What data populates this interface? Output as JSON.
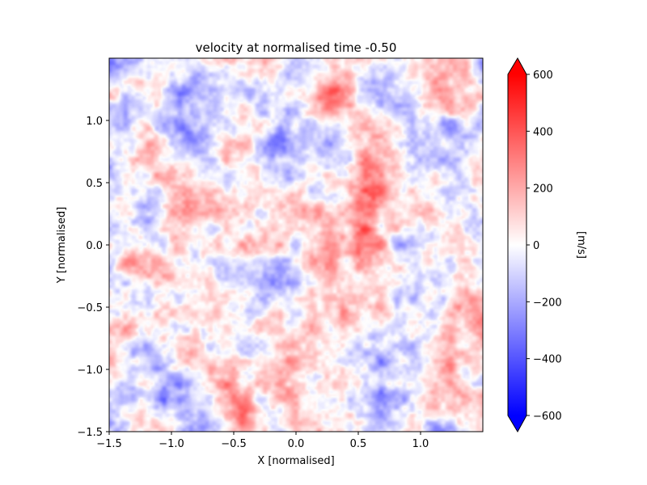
{
  "chart_data": {
    "type": "heatmap",
    "title": "velocity at normalised time -0.50",
    "xlabel": "X [normalised]",
    "ylabel": "Y [normalised]",
    "xlim": [
      -1.5,
      1.5
    ],
    "ylim": [
      -1.5,
      1.5
    ],
    "x_ticks": [
      -1.5,
      -1.0,
      -0.5,
      0.0,
      0.5,
      1.0
    ],
    "x_tick_labels": [
      "−1.5",
      "−1.0",
      "−0.5",
      "0.0",
      "0.5",
      "1.0"
    ],
    "y_ticks": [
      -1.5,
      -1.0,
      -0.5,
      0.0,
      0.5,
      1.0
    ],
    "y_tick_labels": [
      "−1.5",
      "−1.0",
      "−0.5",
      "0.0",
      "0.5",
      "1.0"
    ],
    "colorbar": {
      "label": "[m/s]",
      "vmin": -600,
      "vmax": 600,
      "ticks": [
        -600,
        -400,
        -200,
        0,
        200,
        400,
        600
      ],
      "tick_labels": [
        "−600",
        "−400",
        "−200",
        "0",
        "200",
        "400",
        "600"
      ],
      "extend": "both",
      "colormap": "bwr",
      "color_low": "#0000ff",
      "color_mid": "#ffffff",
      "color_high": "#ff0000"
    },
    "grid": false,
    "field_description": "turbulent velocity field with blobs of roughly ±300 m/s",
    "features": [
      {
        "x": 1.4,
        "y": -0.5,
        "value": 380
      },
      {
        "x": 0.55,
        "y": 0.05,
        "value": 320
      },
      {
        "x": 0.55,
        "y": 0.45,
        "value": 300
      },
      {
        "x": -0.15,
        "y": -1.0,
        "value": 300
      },
      {
        "x": -0.45,
        "y": -1.35,
        "value": 280
      },
      {
        "x": -0.6,
        "y": 0.7,
        "value": 220
      },
      {
        "x": -1.3,
        "y": -0.15,
        "value": 250
      },
      {
        "x": -1.2,
        "y": 0.75,
        "value": 200
      },
      {
        "x": 1.15,
        "y": 1.35,
        "value": 200
      },
      {
        "x": 0.35,
        "y": 1.2,
        "value": 200
      },
      {
        "x": 0.15,
        "y": 0.2,
        "value": 180
      },
      {
        "x": 1.3,
        "y": -1.35,
        "value": 160
      },
      {
        "x": -0.85,
        "y": 0.9,
        "value": -380
      },
      {
        "x": 0.85,
        "y": 1.2,
        "value": -320
      },
      {
        "x": -0.15,
        "y": 0.75,
        "value": -300
      },
      {
        "x": -1.35,
        "y": 1.1,
        "value": -280
      },
      {
        "x": -1.3,
        "y": -0.45,
        "value": -260
      },
      {
        "x": -0.9,
        "y": -1.3,
        "value": -260
      },
      {
        "x": 0.85,
        "y": -1.25,
        "value": -280
      },
      {
        "x": 0.35,
        "y": -0.85,
        "value": -240
      },
      {
        "x": 0.95,
        "y": -0.55,
        "value": -220
      },
      {
        "x": -0.2,
        "y": -0.3,
        "value": -180
      },
      {
        "x": 0.2,
        "y": -1.35,
        "value": -200
      },
      {
        "x": -0.55,
        "y": 1.3,
        "value": -200
      },
      {
        "x": 1.2,
        "y": 0.55,
        "value": -180
      }
    ]
  }
}
